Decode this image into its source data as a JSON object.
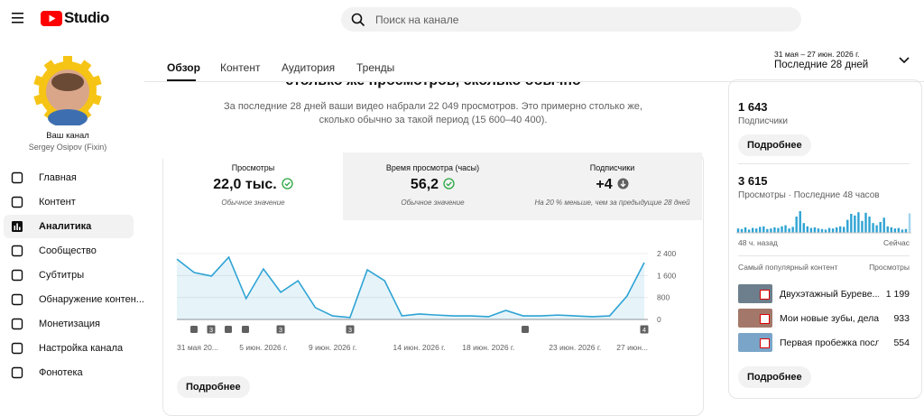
{
  "header": {
    "logo": "Studio",
    "search_placeholder": "Поиск на канале"
  },
  "sidebar": {
    "channel_label": "Ваш канал",
    "channel_name": "Sergey Osipov (Fixin)",
    "nav": [
      "Главная",
      "Контент",
      "Аналитика",
      "Сообщество",
      "Субтитры",
      "Обнаружение контен...",
      "Монетизация",
      "Настройка канала",
      "Фонотека"
    ]
  },
  "tabs": [
    "Обзор",
    "Контент",
    "Аудитория",
    "Тренды"
  ],
  "date_range": {
    "dates": "31 мая – 27 июн. 2026 г.",
    "period": "Последние 28 дней"
  },
  "summary": {
    "heading": "столько же просмотров, сколько обычно",
    "lines": [
      "За последние 28 дней ваши видео набрали 22 049 просмотров. Это примерно столько же,",
      "сколько обычно за такой период (15 600–40 400)."
    ]
  },
  "metrics": [
    {
      "label": "Просмотры",
      "value": "22,0 тыс.",
      "note": "Обычное значение"
    },
    {
      "label": "Время просмотра (часы)",
      "value": "56,2",
      "note": "Обычное значение"
    },
    {
      "label": "Подписчики",
      "value": "+4",
      "note": "На 20 % меньше, чем за предыдущие 28 дней"
    }
  ],
  "views_chart": {
    "type": "line",
    "color": "#2ea3d4",
    "categories": [
      "31 мая 20...",
      null,
      null,
      null,
      null,
      "5 июн. 2026 г.",
      null,
      null,
      null,
      "9 июн. 2026 г.",
      null,
      null,
      null,
      null,
      "14 июн. 2026 г.",
      null,
      null,
      null,
      "18 июн. 2026 г.",
      null,
      null,
      null,
      null,
      "23 июн. 2026 г.",
      null,
      null,
      null,
      "27 июн..."
    ],
    "values": [
      2200,
      1710,
      1580,
      2270,
      760,
      1840,
      990,
      1410,
      430,
      130,
      70,
      1810,
      1410,
      130,
      200,
      160,
      130,
      130,
      100,
      330,
      130,
      130,
      160,
      130,
      100,
      130,
      850,
      2070
    ],
    "ylim": [
      0,
      2400
    ],
    "yticks": [
      0,
      800,
      {
        "value": 1600,
        "label": "1 600"
      },
      {
        "value": 2400,
        "label": "2 400"
      }
    ],
    "publish_badges": [
      "3",
      "3",
      "3",
      "4"
    ]
  },
  "details_button": "Подробнее",
  "subscribers": {
    "value": "1 643",
    "label": "Подписчики"
  },
  "realtime": {
    "value": "3 615",
    "label": "Просмотры · Последние 48 часов",
    "type": "bar",
    "color": "#2ea3d4",
    "values": [
      40,
      35,
      50,
      30,
      45,
      40,
      55,
      60,
      35,
      40,
      50,
      45,
      60,
      70,
      40,
      55,
      150,
      200,
      90,
      60,
      45,
      50,
      40,
      35,
      30,
      45,
      40,
      50,
      60,
      55,
      120,
      175,
      160,
      190,
      110,
      185,
      150,
      90,
      70,
      100,
      140,
      60,
      50,
      40,
      45,
      30,
      35,
      180
    ],
    "start_label": "48 ч. назад",
    "end_label": "Сейчас"
  },
  "top_content": {
    "title": "Самый популярный контент",
    "column": "Просмотры",
    "items": [
      {
        "title": "Двухэтажный Буреве...",
        "views": "1 199"
      },
      {
        "title": "Мои новые зубы, делал...",
        "views": "933"
      },
      {
        "title": "Первая пробежка посл...",
        "views": "554"
      }
    ]
  }
}
